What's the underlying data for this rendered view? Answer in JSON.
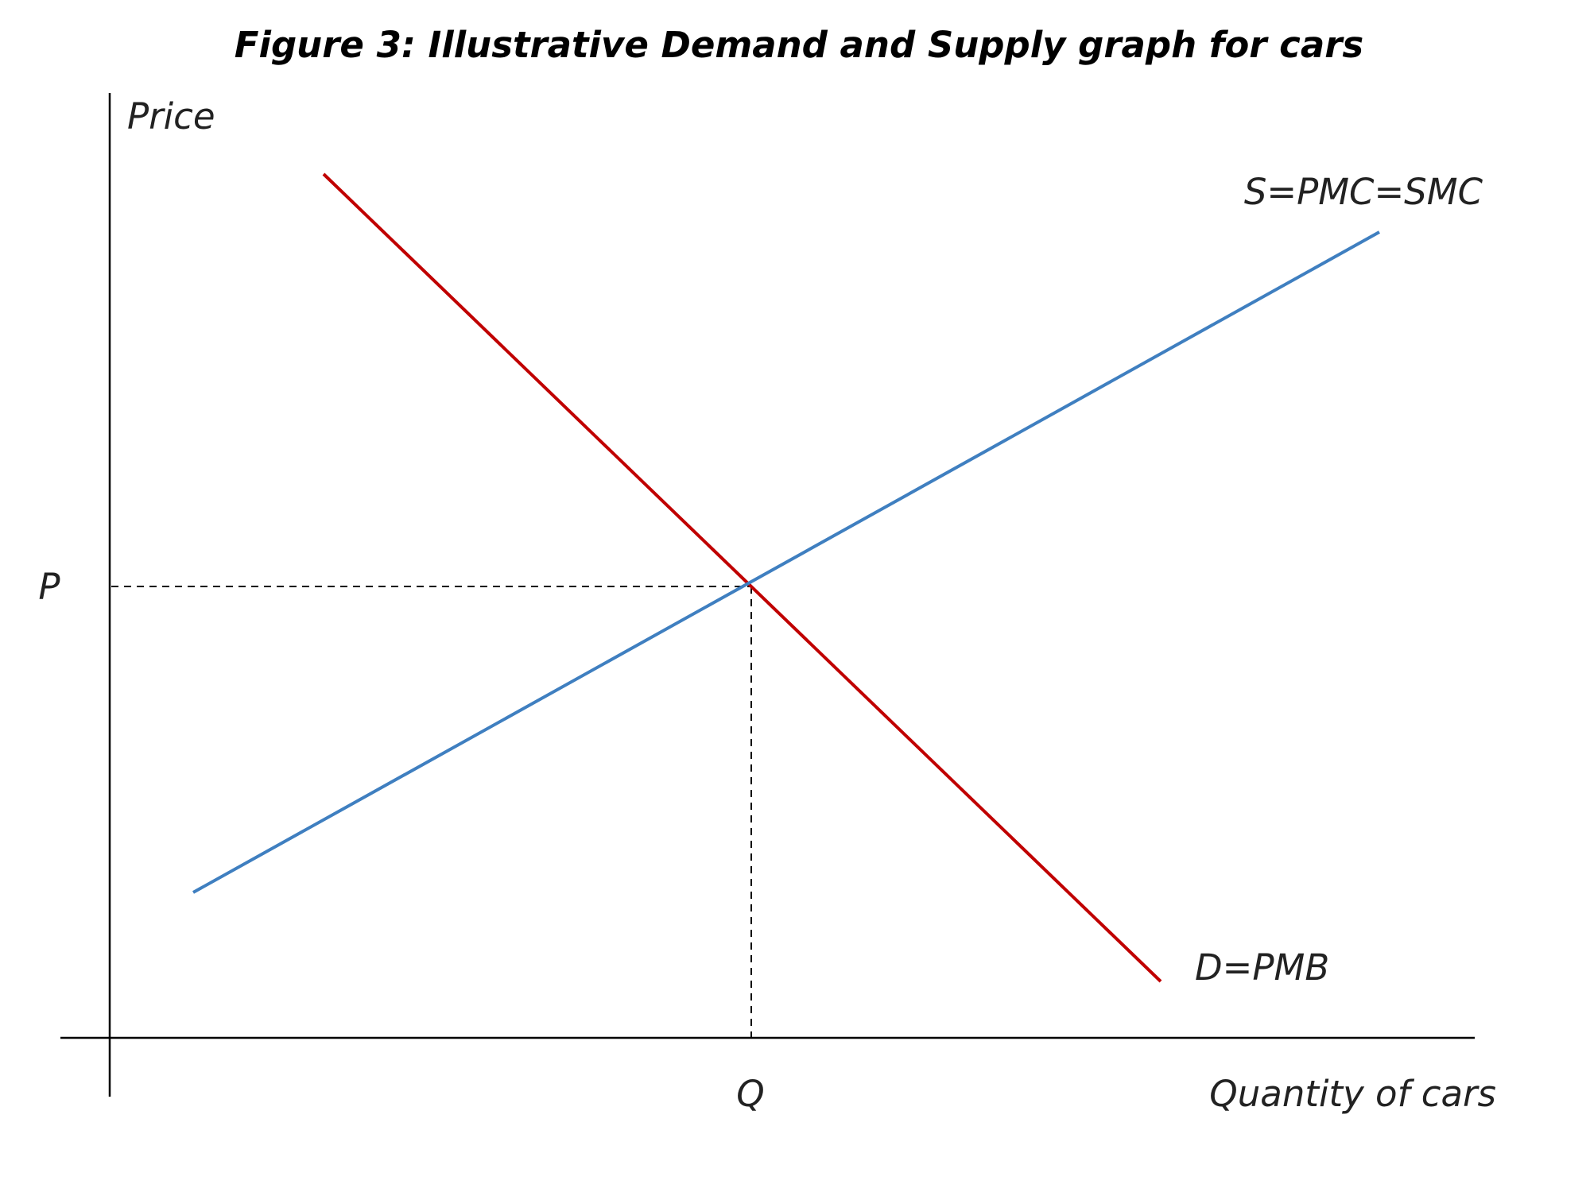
{
  "figure": {
    "title": "Figure 3: Illustrative Demand and Supply graph for cars"
  },
  "axes": {
    "y_label": "Price",
    "x_label": "Quantity of cars",
    "equilibrium_price_label": "P",
    "equilibrium_quantity_label": "Q"
  },
  "curves": {
    "supply": {
      "label": "S=PMC=SMC",
      "color": "#3f7fc0"
    },
    "demand": {
      "label": "D=PMB",
      "color": "#c00000"
    }
  },
  "colors": {
    "axis": "#000000",
    "guide": "#000000",
    "background": "#ffffff"
  }
}
